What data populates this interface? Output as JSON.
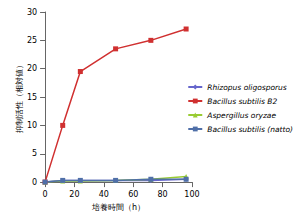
{
  "chart_data": {
    "type": "line",
    "x_label": "培養時間（h）",
    "y_label": "抑制活性（相対値）",
    "x": [
      0,
      12,
      24,
      48,
      72,
      96
    ],
    "series": [
      {
        "name": "Rhizopus oligosporus",
        "color": "#6666cc",
        "marker": "diamond",
        "values": [
          0,
          0.3,
          0.3,
          0.3,
          0.3,
          0.5
        ]
      },
      {
        "name": "Bacillus subtilis B2",
        "color": "#d03030",
        "marker": "square",
        "values": [
          0,
          10,
          19.5,
          23.5,
          25,
          27
        ]
      },
      {
        "name": "Aspergillus oryzae",
        "color": "#99cc33",
        "marker": "triangle",
        "values": [
          0,
          0.2,
          0.2,
          0.3,
          0.5,
          1.0
        ]
      },
      {
        "name": "Bacillus subtilis (natto)",
        "color": "#4f6fa8",
        "marker": "square",
        "values": [
          0,
          0.3,
          0.3,
          0.3,
          0.5,
          0.5
        ]
      }
    ],
    "xlim": [
      0,
      100
    ],
    "xticks": [
      0,
      20,
      40,
      60,
      80,
      100
    ],
    "ylim": [
      0,
      30
    ],
    "yticks": [
      0,
      5,
      10,
      15,
      20,
      25,
      30
    ],
    "grid": false,
    "legend": "right"
  }
}
